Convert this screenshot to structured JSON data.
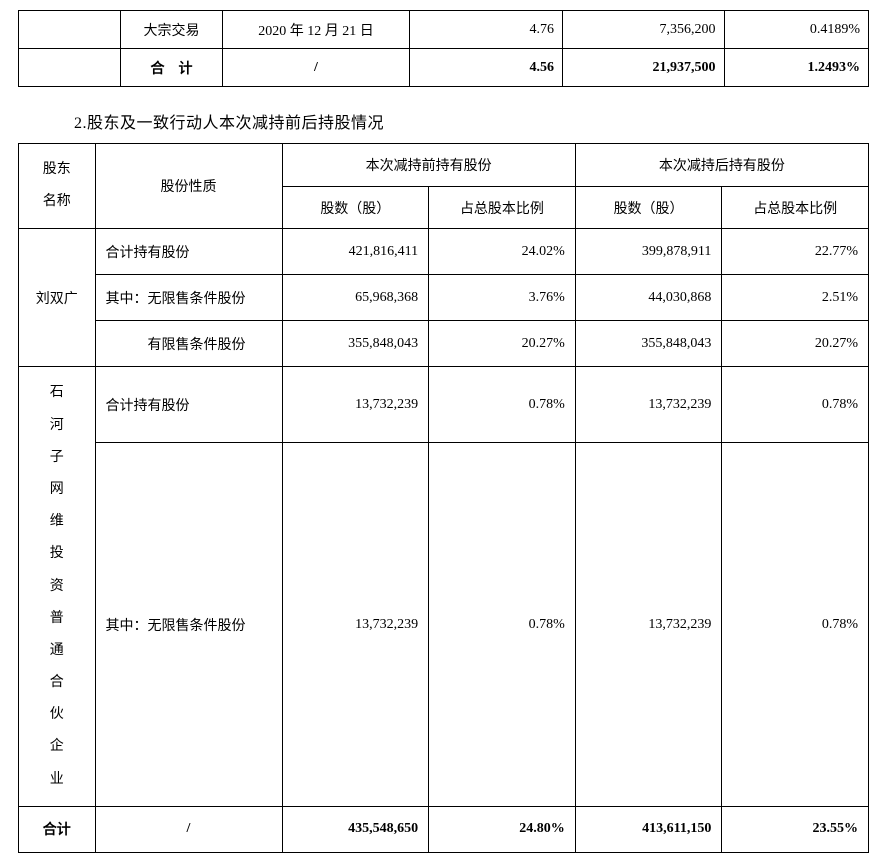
{
  "table1": {
    "row1": {
      "type": "大宗交易",
      "date": "2020 年 12 月 21 日",
      "price": "4.76",
      "shares": "7,356,200",
      "pct": "0.4189%"
    },
    "total": {
      "label": "合　计",
      "slash": "/",
      "price": "4.56",
      "shares": "21,937,500",
      "pct": "1.2493%"
    }
  },
  "sectionTitle": "2.股东及一致行动人本次减持前后持股情况",
  "table2": {
    "headers": {
      "h1": "股东名称",
      "h2": "股份性质",
      "h3": "本次减持前持有股份",
      "h4": "本次减持后持有股份",
      "h3a": "股数（股）",
      "h3b": "占总股本比例",
      "h4a": "股数（股）",
      "h4b": "占总股本比例"
    },
    "s1": {
      "name": "刘双广",
      "r1": {
        "label": "合计持有股份",
        "a": "421,816,411",
        "b": "24.02%",
        "c": "399,878,911",
        "d": "22.77%"
      },
      "r2": {
        "label": "其中：无限售条件股份",
        "a": "65,968,368",
        "b": "3.76%",
        "c": "44,030,868",
        "d": "2.51%"
      },
      "r3": {
        "label": "　　　有限售条件股份",
        "a": "355,848,043",
        "b": "20.27%",
        "c": "355,848,043",
        "d": "20.27%"
      }
    },
    "s2": {
      "name": "石河子网维投资普通合伙企业",
      "r1": {
        "label": "合计持有股份",
        "a": "13,732,239",
        "b": "0.78%",
        "c": "13,732,239",
        "d": "0.78%"
      },
      "r2": {
        "label": "其中：无限售条件股份",
        "a": "13,732,239",
        "b": "0.78%",
        "c": "13,732,239",
        "d": "0.78%"
      }
    },
    "total": {
      "label": "合计",
      "slash": "/",
      "a": "435,548,650",
      "b": "24.80%",
      "c": "413,611,150",
      "d": "23.55%"
    }
  }
}
